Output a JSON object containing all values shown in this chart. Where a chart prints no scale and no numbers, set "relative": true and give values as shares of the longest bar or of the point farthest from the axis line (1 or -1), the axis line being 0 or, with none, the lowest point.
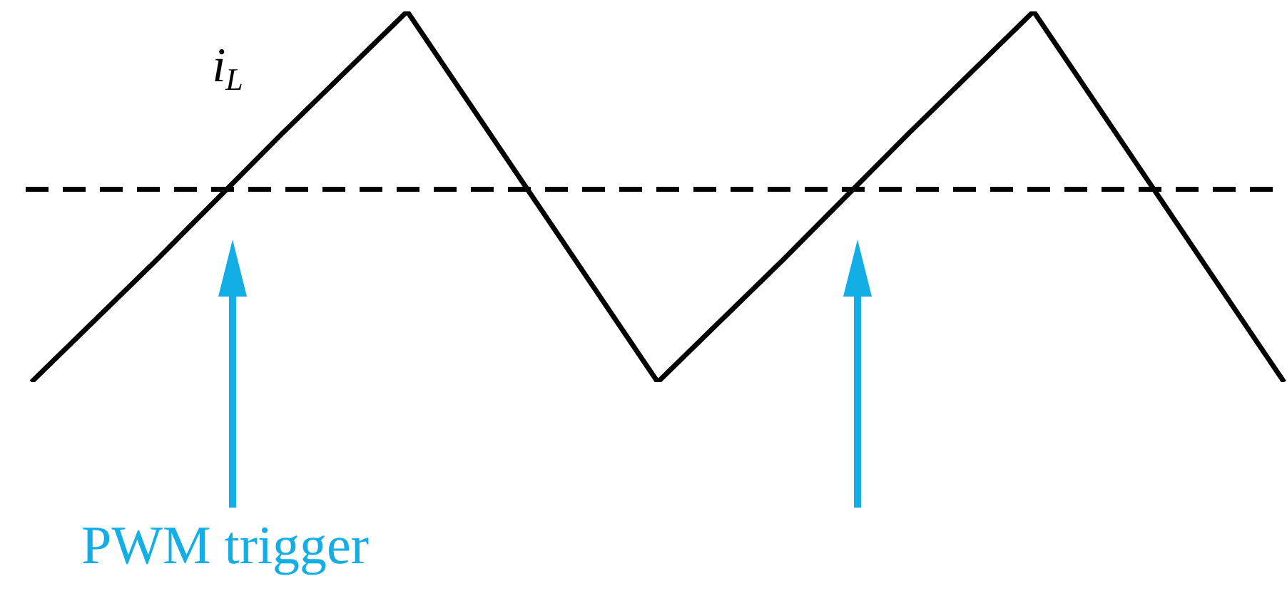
{
  "chart_data": {
    "type": "line",
    "relative": true,
    "categories": [
      null,
      null,
      null,
      null,
      null,
      null,
      null,
      null,
      null,
      null,
      null
    ],
    "series": [
      {
        "name": "i$_{L}$",
        "color": "#000000",
        "values": [
          0,
          0.33,
          0.67,
          1,
          0.5,
          0,
          0.33,
          0.67,
          1,
          0.5,
          0
        ]
      }
    ],
    "ref_lines": [
      {
        "axis": "y",
        "value": 0.52,
        "color": "#000000",
        "line_style": "dashed"
      }
    ],
    "annotations": [
      "PWM trigger"
    ],
    "legend": false,
    "marker": "none",
    "line_style": "solid"
  }
}
